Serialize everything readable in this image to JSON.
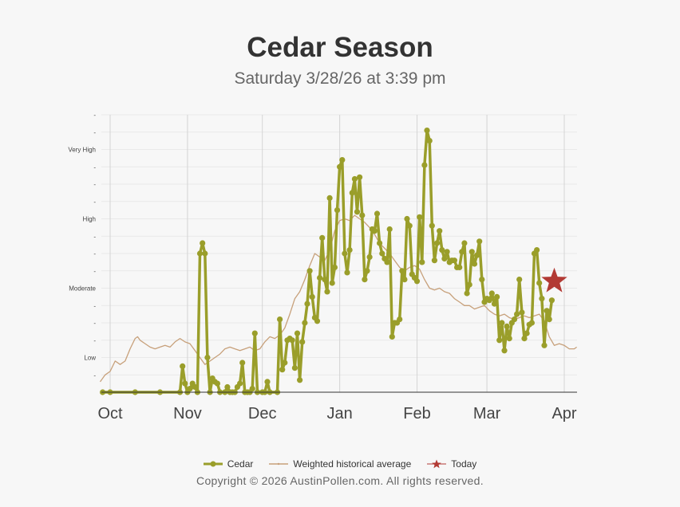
{
  "title": "Cedar Season",
  "subtitle": "Saturday 3/28/26 at 3:39 pm",
  "copyright": "Copyright © 2026 AustinPollen.com.  All rights reserved.",
  "colors": {
    "cedar": "#9a9e2a",
    "average": "#c7a07a",
    "today": "#b23a34"
  },
  "chart_data": {
    "type": "line",
    "title": "Cedar Season",
    "subtitle": "Saturday 3/28/26 at 3:39 pm",
    "x_range": [
      "2025-10-01",
      "2026-04-30"
    ],
    "month_ticks": [
      {
        "label": "Oct",
        "day": 0
      },
      {
        "label": "Nov",
        "day": 31
      },
      {
        "label": "Dec",
        "day": 61
      },
      {
        "label": "Jan",
        "day": 92
      },
      {
        "label": "Feb",
        "day": 123
      },
      {
        "label": "Mar",
        "day": 151
      },
      {
        "label": "Apr",
        "day": 182
      }
    ],
    "y_range": [
      0,
      16
    ],
    "y_ticks": [
      {
        "level": 1,
        "label": "-"
      },
      {
        "level": 2,
        "label": "Low"
      },
      {
        "level": 3,
        "label": "-"
      },
      {
        "level": 4,
        "label": "-"
      },
      {
        "level": 5,
        "label": "-"
      },
      {
        "level": 6,
        "label": "Moderate"
      },
      {
        "level": 7,
        "label": "-"
      },
      {
        "level": 8,
        "label": "-"
      },
      {
        "level": 9,
        "label": "-"
      },
      {
        "level": 10,
        "label": "High"
      },
      {
        "level": 11,
        "label": "-"
      },
      {
        "level": 12,
        "label": "-"
      },
      {
        "level": 13,
        "label": "-"
      },
      {
        "level": 14,
        "label": "Very High"
      },
      {
        "level": 15,
        "label": "-"
      },
      {
        "level": 16,
        "label": "-"
      }
    ],
    "legend": [
      {
        "name": "Cedar",
        "key": "cedar"
      },
      {
        "name": "Weighted historical average",
        "key": "average"
      },
      {
        "name": "Today",
        "key": "today"
      }
    ],
    "series": [
      {
        "name": "Cedar",
        "points": [
          [
            -3,
            0
          ],
          [
            0,
            0
          ],
          [
            10,
            0
          ],
          [
            20,
            0
          ],
          [
            28,
            0
          ],
          [
            29,
            1.5
          ],
          [
            30,
            0.5
          ],
          [
            31,
            0
          ],
          [
            32,
            0.2
          ],
          [
            33,
            0.5
          ],
          [
            34,
            0.3
          ],
          [
            35,
            0
          ],
          [
            36,
            8
          ],
          [
            37,
            8.6
          ],
          [
            38,
            8
          ],
          [
            39,
            2
          ],
          [
            40,
            0
          ],
          [
            41,
            0.8
          ],
          [
            42,
            0.6
          ],
          [
            43,
            0.5
          ],
          [
            44,
            0
          ],
          [
            46,
            0
          ],
          [
            47,
            0.3
          ],
          [
            48,
            0
          ],
          [
            49,
            0
          ],
          [
            50,
            0
          ],
          [
            51,
            0.3
          ],
          [
            52,
            0.5
          ],
          [
            53,
            1.7
          ],
          [
            54,
            0
          ],
          [
            55,
            0
          ],
          [
            56,
            0
          ],
          [
            57,
            0.2
          ],
          [
            58,
            3.4
          ],
          [
            59,
            0
          ],
          [
            61,
            0
          ],
          [
            62,
            0
          ],
          [
            63,
            0.6
          ],
          [
            64,
            0
          ],
          [
            67,
            0
          ],
          [
            68,
            4.2
          ],
          [
            69,
            1.3
          ],
          [
            70,
            1.7
          ],
          [
            71,
            3
          ],
          [
            72,
            3.1
          ],
          [
            73,
            3
          ],
          [
            74,
            1.4
          ],
          [
            75,
            3.4
          ],
          [
            76,
            0.7
          ],
          [
            77,
            2.9
          ],
          [
            78,
            4
          ],
          [
            79,
            5.1
          ],
          [
            80,
            7
          ],
          [
            81,
            5.5
          ],
          [
            82,
            4.3
          ],
          [
            83,
            4.1
          ],
          [
            84,
            6.6
          ],
          [
            85,
            8.9
          ],
          [
            86,
            6.5
          ],
          [
            87,
            5.8
          ],
          [
            88,
            11.2
          ],
          [
            89,
            6.3
          ],
          [
            90,
            7.2
          ],
          [
            91,
            10.5
          ],
          [
            92,
            13
          ],
          [
            93,
            13.4
          ],
          [
            94,
            8
          ],
          [
            95,
            6.9
          ],
          [
            96,
            8.2
          ],
          [
            97,
            11.5
          ],
          [
            98,
            12.3
          ],
          [
            99,
            10.4
          ],
          [
            100,
            12.4
          ],
          [
            101,
            10.2
          ],
          [
            102,
            6.5
          ],
          [
            103,
            7
          ],
          [
            104,
            7.8
          ],
          [
            105,
            9.4
          ],
          [
            106,
            9.3
          ],
          [
            107,
            10.3
          ],
          [
            108,
            8.6
          ],
          [
            109,
            8
          ],
          [
            110,
            7.7
          ],
          [
            111,
            7.5
          ],
          [
            112,
            9.4
          ],
          [
            113,
            3.2
          ],
          [
            114,
            4
          ],
          [
            115,
            4
          ],
          [
            116,
            4.2
          ],
          [
            117,
            7
          ],
          [
            118,
            6.5
          ],
          [
            119,
            10
          ],
          [
            120,
            9.6
          ],
          [
            121,
            6.8
          ],
          [
            122,
            6.6
          ],
          [
            123,
            6.4
          ],
          [
            124,
            10.1
          ],
          [
            125,
            7.5
          ],
          [
            126,
            13.1
          ],
          [
            127,
            15.1
          ],
          [
            128,
            14.5
          ],
          [
            129,
            9.6
          ],
          [
            130,
            7.6
          ],
          [
            131,
            8.6
          ],
          [
            132,
            9.3
          ],
          [
            133,
            8.2
          ],
          [
            134,
            7.7
          ],
          [
            135,
            8.1
          ],
          [
            136,
            7.5
          ],
          [
            137,
            7.6
          ],
          [
            138,
            7.6
          ],
          [
            139,
            7.2
          ],
          [
            140,
            7.2
          ],
          [
            141,
            8.1
          ],
          [
            142,
            8.6
          ],
          [
            143,
            5.7
          ],
          [
            144,
            6.2
          ],
          [
            145,
            8.1
          ],
          [
            146,
            7.4
          ],
          [
            147,
            7.9
          ],
          [
            148,
            8.7
          ],
          [
            149,
            6.5
          ],
          [
            150,
            5.2
          ],
          [
            151,
            5.4
          ],
          [
            152,
            5.3
          ],
          [
            153,
            5.7
          ],
          [
            154,
            5.1
          ],
          [
            155,
            5.5
          ],
          [
            156,
            3
          ],
          [
            157,
            4
          ],
          [
            158,
            2.4
          ],
          [
            159,
            3.8
          ],
          [
            160,
            3.1
          ],
          [
            161,
            4
          ],
          [
            162,
            4.2
          ],
          [
            163,
            4.5
          ],
          [
            164,
            6.5
          ],
          [
            165,
            4.6
          ],
          [
            166,
            3.1
          ],
          [
            167,
            3.4
          ],
          [
            168,
            3.9
          ],
          [
            169,
            4
          ],
          [
            170,
            8
          ],
          [
            171,
            8.2
          ],
          [
            172,
            6.3
          ],
          [
            173,
            5.4
          ],
          [
            174,
            2.7
          ],
          [
            175,
            4.7
          ],
          [
            176,
            4.2
          ],
          [
            177,
            5.3
          ]
        ]
      },
      {
        "name": "Weighted historical average",
        "points": [
          [
            -4,
            0.6
          ],
          [
            -2,
            1
          ],
          [
            0,
            1.2
          ],
          [
            2,
            1.8
          ],
          [
            4,
            1.6
          ],
          [
            6,
            1.8
          ],
          [
            8,
            2.5
          ],
          [
            10,
            3.1
          ],
          [
            11,
            3.2
          ],
          [
            12,
            3
          ],
          [
            14,
            2.8
          ],
          [
            16,
            2.6
          ],
          [
            18,
            2.5
          ],
          [
            20,
            2.6
          ],
          [
            22,
            2.7
          ],
          [
            24,
            2.6
          ],
          [
            26,
            2.9
          ],
          [
            28,
            3.1
          ],
          [
            30,
            2.9
          ],
          [
            32,
            2.8
          ],
          [
            34,
            2.4
          ],
          [
            36,
            2
          ],
          [
            38,
            1.6
          ],
          [
            40,
            1.8
          ],
          [
            42,
            2
          ],
          [
            44,
            2.2
          ],
          [
            46,
            2.5
          ],
          [
            48,
            2.6
          ],
          [
            50,
            2.5
          ],
          [
            52,
            2.4
          ],
          [
            54,
            2.5
          ],
          [
            56,
            2.6
          ],
          [
            58,
            2.4
          ],
          [
            60,
            2.5
          ],
          [
            62,
            2.9
          ],
          [
            64,
            3.2
          ],
          [
            66,
            3.1
          ],
          [
            68,
            3.3
          ],
          [
            70,
            3.7
          ],
          [
            72,
            4.5
          ],
          [
            74,
            5.4
          ],
          [
            76,
            5.8
          ],
          [
            78,
            6.5
          ],
          [
            80,
            7.3
          ],
          [
            82,
            8
          ],
          [
            84,
            7.8
          ],
          [
            86,
            7.6
          ],
          [
            88,
            8.2
          ],
          [
            90,
            9.3
          ],
          [
            92,
            9.9
          ],
          [
            94,
            10
          ],
          [
            96,
            9.9
          ],
          [
            98,
            10.2
          ],
          [
            100,
            10
          ],
          [
            102,
            9.8
          ],
          [
            104,
            9.5
          ],
          [
            106,
            9.1
          ],
          [
            108,
            8.6
          ],
          [
            110,
            8.3
          ],
          [
            112,
            8
          ],
          [
            114,
            7.6
          ],
          [
            116,
            7.2
          ],
          [
            118,
            7
          ],
          [
            120,
            7.2
          ],
          [
            122,
            7.3
          ],
          [
            124,
            7.1
          ],
          [
            126,
            6.5
          ],
          [
            128,
            6
          ],
          [
            130,
            5.9
          ],
          [
            132,
            6
          ],
          [
            134,
            5.8
          ],
          [
            136,
            5.7
          ],
          [
            138,
            5.4
          ],
          [
            140,
            5.2
          ],
          [
            142,
            5
          ],
          [
            144,
            5
          ],
          [
            146,
            4.8
          ],
          [
            148,
            4.9
          ],
          [
            150,
            5
          ],
          [
            152,
            4.7
          ],
          [
            154,
            4.5
          ],
          [
            156,
            4.4
          ],
          [
            158,
            4.5
          ],
          [
            160,
            4.3
          ],
          [
            162,
            4.2
          ],
          [
            164,
            4.3
          ],
          [
            166,
            4.4
          ],
          [
            168,
            4.3
          ],
          [
            170,
            4.4
          ],
          [
            172,
            4.5
          ],
          [
            174,
            4.1
          ],
          [
            176,
            3.2
          ],
          [
            178,
            2.7
          ],
          [
            180,
            2.8
          ],
          [
            182,
            2.7
          ],
          [
            184,
            2.5
          ],
          [
            186,
            2.5
          ],
          [
            187,
            2.6
          ]
        ]
      },
      {
        "name": "Today",
        "points": [
          [
            178,
            6.4
          ]
        ]
      }
    ]
  }
}
